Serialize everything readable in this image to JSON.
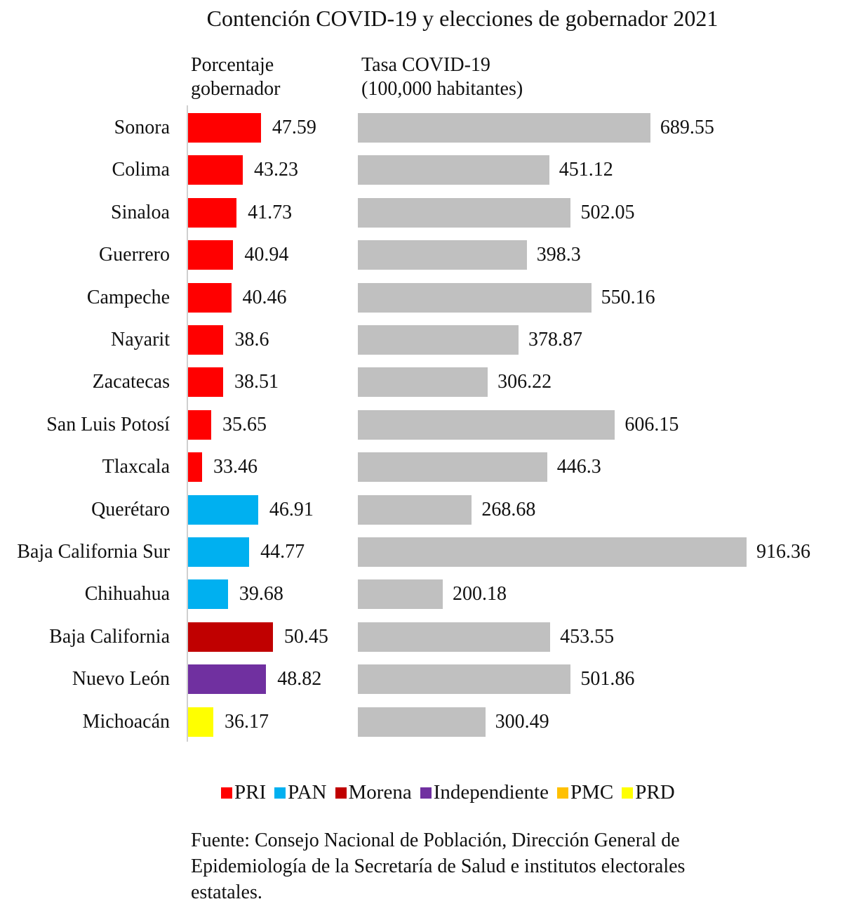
{
  "title": "Contención COVID-19 y elecciones de gobernador 2021",
  "subtitles": {
    "left_line1": "Porcentaje",
    "left_line2": "gobernador",
    "right_line1": "Tasa COVID-19",
    "right_line2": "(100,000 habitantes)"
  },
  "colors": {
    "PRI": "#ff0000",
    "PAN": "#00b0f0",
    "Morena": "#c00000",
    "Independiente": "#7030a0",
    "PMC": "#ffc000",
    "PRD": "#ffff00",
    "covid_bar": "#c0c0c0"
  },
  "legend": [
    {
      "label": "PRI",
      "color": "#ff0000"
    },
    {
      "label": "PAN",
      "color": "#00b0f0"
    },
    {
      "label": "Morena",
      "color": "#c00000"
    },
    {
      "label": "Independiente",
      "color": "#7030a0"
    },
    {
      "label": "PMC",
      "color": "#ffc000"
    },
    {
      "label": "PRD",
      "color": "#ffff00"
    }
  ],
  "footer": "Fuente: Consejo Nacional de Población, Dirección General de Epidemiología de la Secretaría de Salud e institutos electorales estatales.",
  "rows": [
    {
      "state": "Sonora",
      "party": "PRI",
      "pct": "47.59",
      "covid": "689.55"
    },
    {
      "state": "Colima",
      "party": "PRI",
      "pct": "43.23",
      "covid": "451.12"
    },
    {
      "state": "Sinaloa",
      "party": "PRI",
      "pct": "41.73",
      "covid": "502.05"
    },
    {
      "state": "Guerrero",
      "party": "PRI",
      "pct": "40.94",
      "covid": "398.3"
    },
    {
      "state": "Campeche",
      "party": "PRI",
      "pct": "40.46",
      "covid": "550.16"
    },
    {
      "state": "Nayarit",
      "party": "PRI",
      "pct": "38.6",
      "covid": "378.87"
    },
    {
      "state": "Zacatecas",
      "party": "PRI",
      "pct": "38.51",
      "covid": "306.22"
    },
    {
      "state": "San Luis Potosí",
      "party": "PRI",
      "pct": "35.65",
      "covid": "606.15"
    },
    {
      "state": "Tlaxcala",
      "party": "PRI",
      "pct": "33.46",
      "covid": "446.3"
    },
    {
      "state": "Querétaro",
      "party": "PAN",
      "pct": "46.91",
      "covid": "268.68"
    },
    {
      "state": "Baja California Sur",
      "party": "PAN",
      "pct": "44.77",
      "covid": "916.36"
    },
    {
      "state": "Chihuahua",
      "party": "PAN",
      "pct": "39.68",
      "covid": "200.18"
    },
    {
      "state": "Baja California",
      "party": "Morena",
      "pct": "50.45",
      "covid": "453.55"
    },
    {
      "state": "Nuevo León",
      "party": "Independiente",
      "pct": "48.82",
      "covid": "501.86"
    },
    {
      "state": "Michoacán",
      "party": "PRD",
      "pct": "36.17",
      "covid": "300.49"
    }
  ],
  "chart_data": [
    {
      "type": "bar",
      "orientation": "horizontal",
      "title": "Contención COVID-19 y elecciones de gobernador 2021",
      "subtitle": "Porcentaje gobernador",
      "xlabel": "Porcentaje gobernador",
      "ylabel": "",
      "xlim": [
        30,
        52
      ],
      "grid": false,
      "categories": [
        "Sonora",
        "Colima",
        "Sinaloa",
        "Guerrero",
        "Campeche",
        "Nayarit",
        "Zacatecas",
        "San Luis Potosí",
        "Tlaxcala",
        "Querétaro",
        "Baja California Sur",
        "Chihuahua",
        "Baja California",
        "Nuevo León",
        "Michoacán"
      ],
      "values": [
        47.59,
        43.23,
        41.73,
        40.94,
        40.46,
        38.6,
        38.51,
        35.65,
        33.46,
        46.91,
        44.77,
        39.68,
        50.45,
        48.82,
        36.17
      ],
      "bar_party": [
        "PRI",
        "PRI",
        "PRI",
        "PRI",
        "PRI",
        "PRI",
        "PRI",
        "PRI",
        "PRI",
        "PAN",
        "PAN",
        "PAN",
        "Morena",
        "Independiente",
        "PRD"
      ],
      "legend": [
        "PRI",
        "PAN",
        "Morena",
        "Independiente",
        "PMC",
        "PRD"
      ],
      "legend_position": "bottom"
    },
    {
      "type": "bar",
      "orientation": "horizontal",
      "title": "Tasa COVID-19 (100,000 habitantes)",
      "xlabel": "Tasa COVID-19 (100,000 habitantes)",
      "ylabel": "",
      "xlim": [
        0,
        950
      ],
      "grid": false,
      "categories": [
        "Sonora",
        "Colima",
        "Sinaloa",
        "Guerrero",
        "Campeche",
        "Nayarit",
        "Zacatecas",
        "San Luis Potosí",
        "Tlaxcala",
        "Querétaro",
        "Baja California Sur",
        "Chihuahua",
        "Baja California",
        "Nuevo León",
        "Michoacán"
      ],
      "values": [
        689.55,
        451.12,
        502.05,
        398.3,
        550.16,
        378.87,
        306.22,
        606.15,
        446.3,
        268.68,
        916.36,
        200.18,
        453.55,
        501.86,
        300.49
      ],
      "color": "#c0c0c0"
    }
  ]
}
